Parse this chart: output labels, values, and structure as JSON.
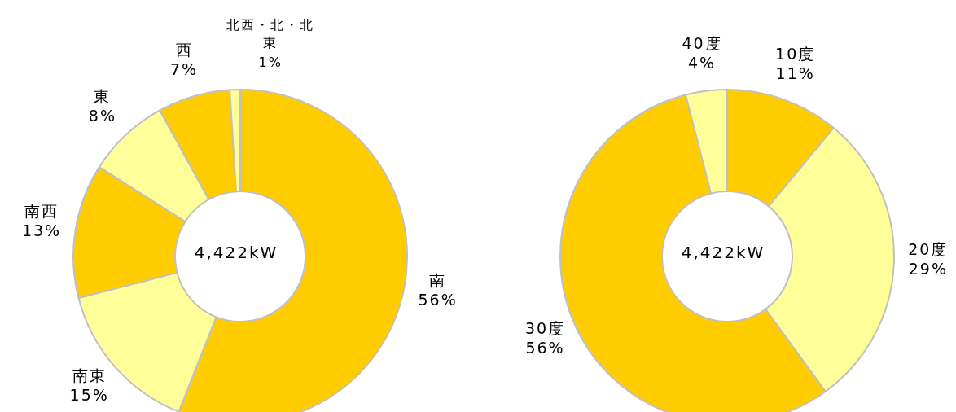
{
  "chart_data": [
    {
      "type": "donut",
      "categories": [
        "南",
        "南東",
        "南西",
        "東",
        "西",
        "北西・北・北東"
      ],
      "values": [
        56,
        15,
        13,
        8,
        7,
        1
      ],
      "value_labels": [
        "56%",
        "15%",
        "13%",
        "8%",
        "7%",
        "1%"
      ],
      "colors": [
        "#ffcc00",
        "#ffff99",
        "#ffcc00",
        "#ffff99",
        "#ffcc00",
        "#ffff99"
      ],
      "annotations": [
        "4,422kW"
      ],
      "legend": false
    },
    {
      "type": "donut",
      "categories": [
        "10度",
        "20度",
        "30度",
        "40度"
      ],
      "values": [
        11,
        29,
        56,
        4
      ],
      "value_labels": [
        "11%",
        "29%",
        "56%",
        "4%"
      ],
      "colors": [
        "#ffcc00",
        "#ffff99",
        "#ffcc00",
        "#ffff99"
      ],
      "annotations": [
        "4,422kW"
      ],
      "legend": false
    }
  ]
}
